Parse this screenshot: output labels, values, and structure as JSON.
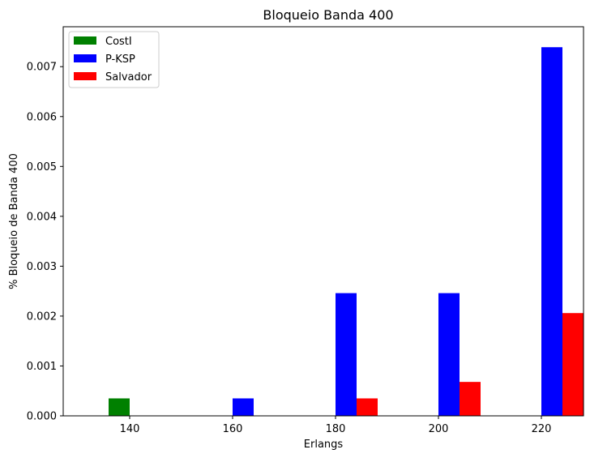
{
  "chart_data": {
    "type": "bar",
    "title": "Bloqueio Banda 400",
    "xlabel": "Erlangs",
    "ylabel": "% Bloqueio de Banda 400",
    "categories": [
      "140",
      "160",
      "180",
      "200",
      "220"
    ],
    "series": [
      {
        "name": "CostI",
        "color": "#008000",
        "values": [
          0.00035,
          0,
          0,
          0,
          0
        ]
      },
      {
        "name": "P-KSP",
        "color": "#0000ff",
        "values": [
          0,
          0.00035,
          0.00246,
          0.00246,
          0.00739
        ]
      },
      {
        "name": "Salvador",
        "color": "#ff0000",
        "values": [
          0,
          0,
          0.00035,
          0.00068,
          0.00206
        ]
      }
    ],
    "ylim": [
      0,
      0.0078
    ],
    "yticks": [
      "0.000",
      "0.001",
      "0.002",
      "0.003",
      "0.004",
      "0.005",
      "0.006",
      "0.007"
    ],
    "legend_position": "top-left",
    "grid": false
  }
}
